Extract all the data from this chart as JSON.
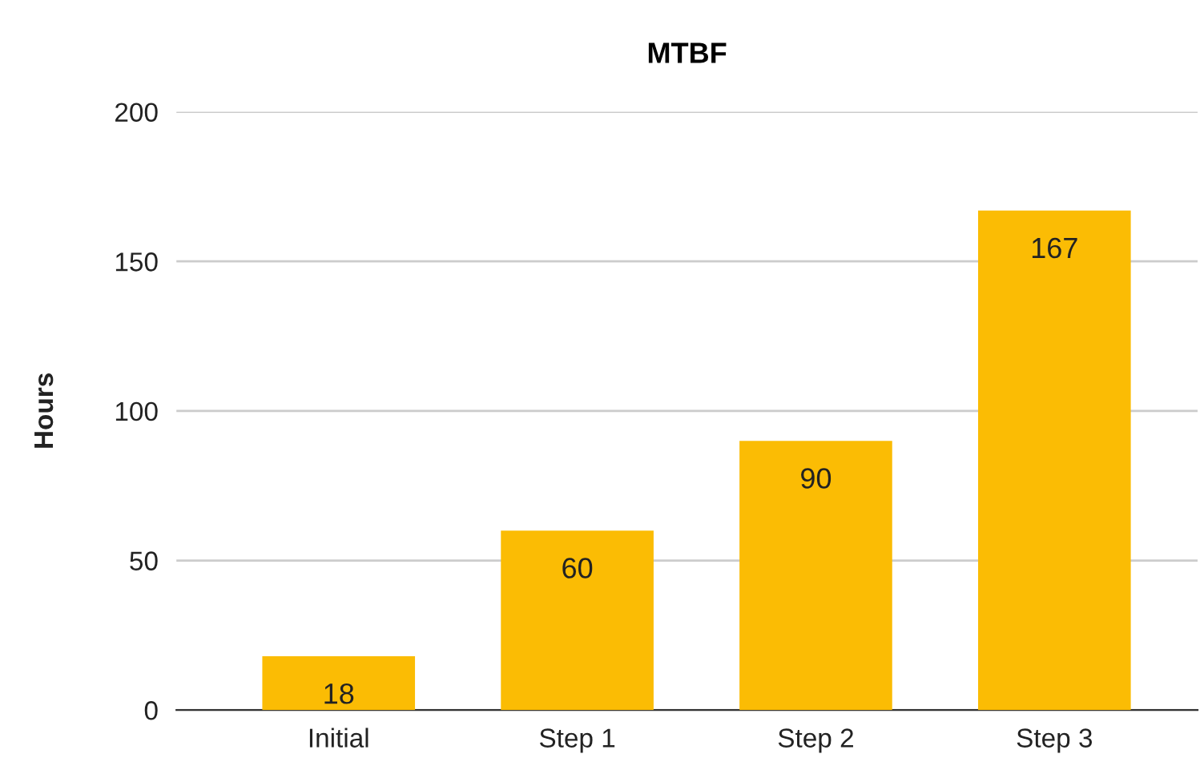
{
  "chart_data": {
    "type": "bar",
    "title": "MTBF",
    "ylabel": "Hours",
    "categories": [
      "Initial",
      "Step 1",
      "Step 2",
      "Step 3"
    ],
    "values": [
      18,
      60,
      90,
      167
    ],
    "color": "#fbbc04",
    "ylim": [
      0,
      200
    ],
    "yticks": [
      0,
      50,
      100,
      150,
      200
    ],
    "grid": "y",
    "data_labels": true
  }
}
